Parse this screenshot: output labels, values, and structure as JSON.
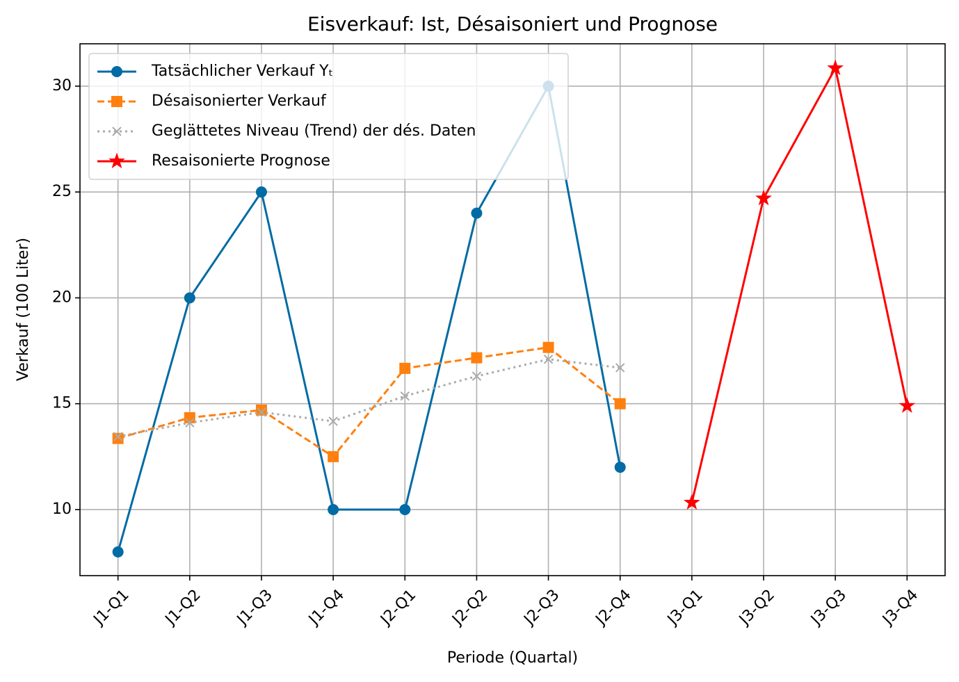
{
  "chart_data": {
    "type": "line",
    "title": "Eisverkauf: Ist, Désaisoniert und Prognose",
    "xlabel": "Periode (Quartal)",
    "ylabel": "Verkauf (100 Liter)",
    "categories": [
      "J1-Q1",
      "J1-Q2",
      "J1-Q3",
      "J1-Q4",
      "J2-Q1",
      "J2-Q2",
      "J2-Q3",
      "J2-Q4",
      "J3-Q1",
      "J3-Q2",
      "J3-Q3",
      "J3-Q4"
    ],
    "series": [
      {
        "name": "Tatsächlicher Verkauf Yₜ",
        "color": "#006ba4",
        "marker": "circle",
        "dash": "solid",
        "values": [
          8,
          20,
          25,
          10,
          10,
          24,
          30,
          12,
          null,
          null,
          null,
          null
        ]
      },
      {
        "name": "Désaisonierter Verkauf",
        "color": "#ff800e",
        "marker": "square",
        "dash": "dashed",
        "values": [
          13.36,
          14.34,
          14.7,
          12.5,
          16.67,
          17.17,
          17.66,
          15,
          null,
          null,
          null,
          null
        ]
      },
      {
        "name": "Geglättetes Niveau (Trend) der dés. Daten",
        "color": "#ababab",
        "marker": "x",
        "dash": "dotted",
        "values": [
          13.45,
          14.1,
          14.6,
          14.17,
          15.36,
          16.3,
          17.1,
          16.7,
          null,
          null,
          null,
          null
        ]
      },
      {
        "name": "Resaisonierte Prognose",
        "color": "#ff0000",
        "marker": "star",
        "dash": "solid",
        "values": [
          null,
          null,
          null,
          null,
          null,
          null,
          null,
          null,
          10.33,
          24.7,
          30.85,
          14.9
        ]
      }
    ],
    "ylim": [
      6.88,
      32.0
    ],
    "yticks": [
      10,
      15,
      20,
      25,
      30
    ],
    "grid": true,
    "legend": "upper left"
  }
}
